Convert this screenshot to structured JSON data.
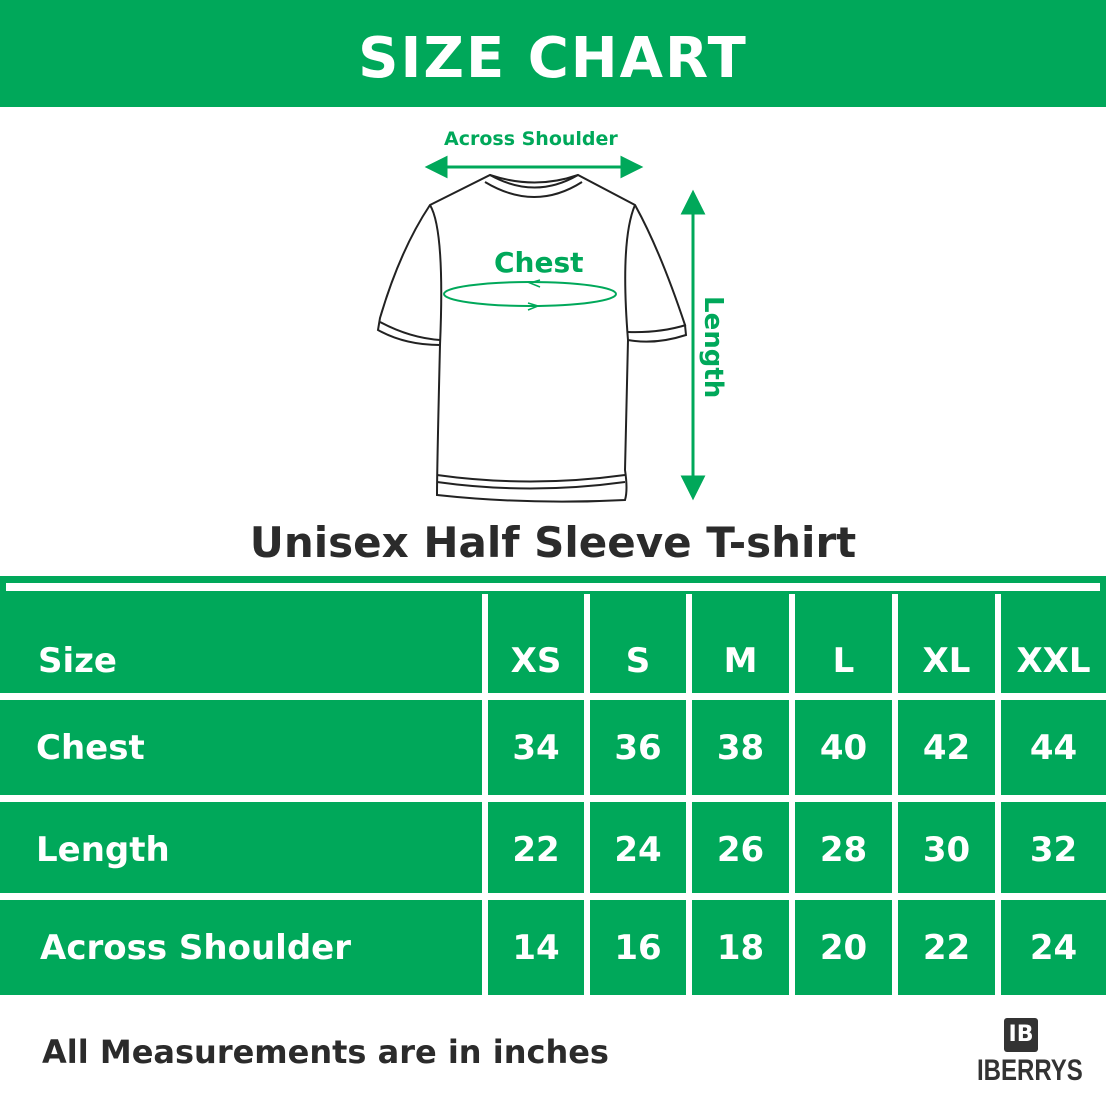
{
  "title": "SIZE CHART",
  "diagram": {
    "across_shoulder": "Across Shoulder",
    "chest": "Chest",
    "length": "Length"
  },
  "subtitle": "Unisex Half Sleeve T-shirt",
  "table": {
    "header": [
      "Size",
      "XS",
      "S",
      "M",
      "L",
      "XL",
      "XXL"
    ],
    "rows": [
      [
        "Chest",
        "34",
        "36",
        "38",
        "40",
        "42",
        "44"
      ],
      [
        "Length",
        "22",
        "24",
        "26",
        "28",
        "30",
        "32"
      ],
      [
        "Across Shoulder",
        "14",
        "16",
        "18",
        "20",
        "22",
        "24"
      ]
    ]
  },
  "footer": "All Measurements are in inches",
  "logo": {
    "mark": "IB",
    "name": "IBERRYS",
    "tm": "™"
  },
  "colors": {
    "accent": "#00a85a",
    "text": "#2b2b2b"
  }
}
